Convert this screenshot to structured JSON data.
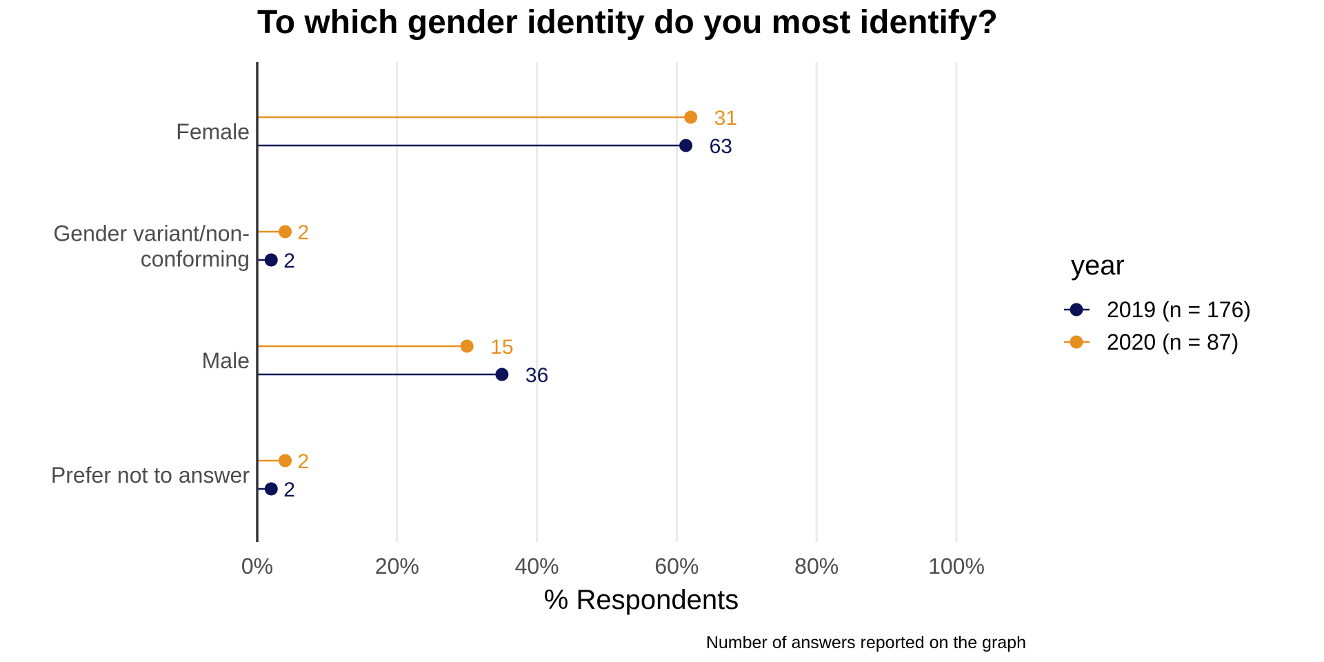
{
  "chart_data": {
    "type": "lollipop",
    "title": "To which gender identity do you most identify?",
    "xlabel": "% Respondents",
    "ylabel": "",
    "caption": "Number of answers reported on the graph",
    "xlim": [
      0,
      100
    ],
    "x_ticks": [
      "0%",
      "20%",
      "40%",
      "60%",
      "80%",
      "100%"
    ],
    "x_tick_values": [
      0,
      20,
      40,
      60,
      80,
      100
    ],
    "grid": "vertical major",
    "categories": [
      "Female",
      "Gender variant/non-\nconforming",
      "Male",
      "Prefer not to answer"
    ],
    "category_lines": [
      [
        "Female"
      ],
      [
        "Gender variant/non-",
        "conforming"
      ],
      [
        "Male"
      ],
      [
        "Prefer not to answer"
      ]
    ],
    "legend": {
      "title": "year",
      "position": "right"
    },
    "series": [
      {
        "name": "2019 (n = 176)",
        "color": "#0b1257",
        "percent": [
          61.3,
          2.0,
          35.0,
          2.0
        ],
        "counts": [
          "63",
          "2",
          "36",
          "2"
        ]
      },
      {
        "name": "2020 (n = 87)",
        "color": "#e8901f",
        "percent": [
          62.0,
          4.0,
          30.0,
          4.0
        ],
        "counts": [
          "31",
          "2",
          "15",
          "2"
        ]
      }
    ]
  }
}
